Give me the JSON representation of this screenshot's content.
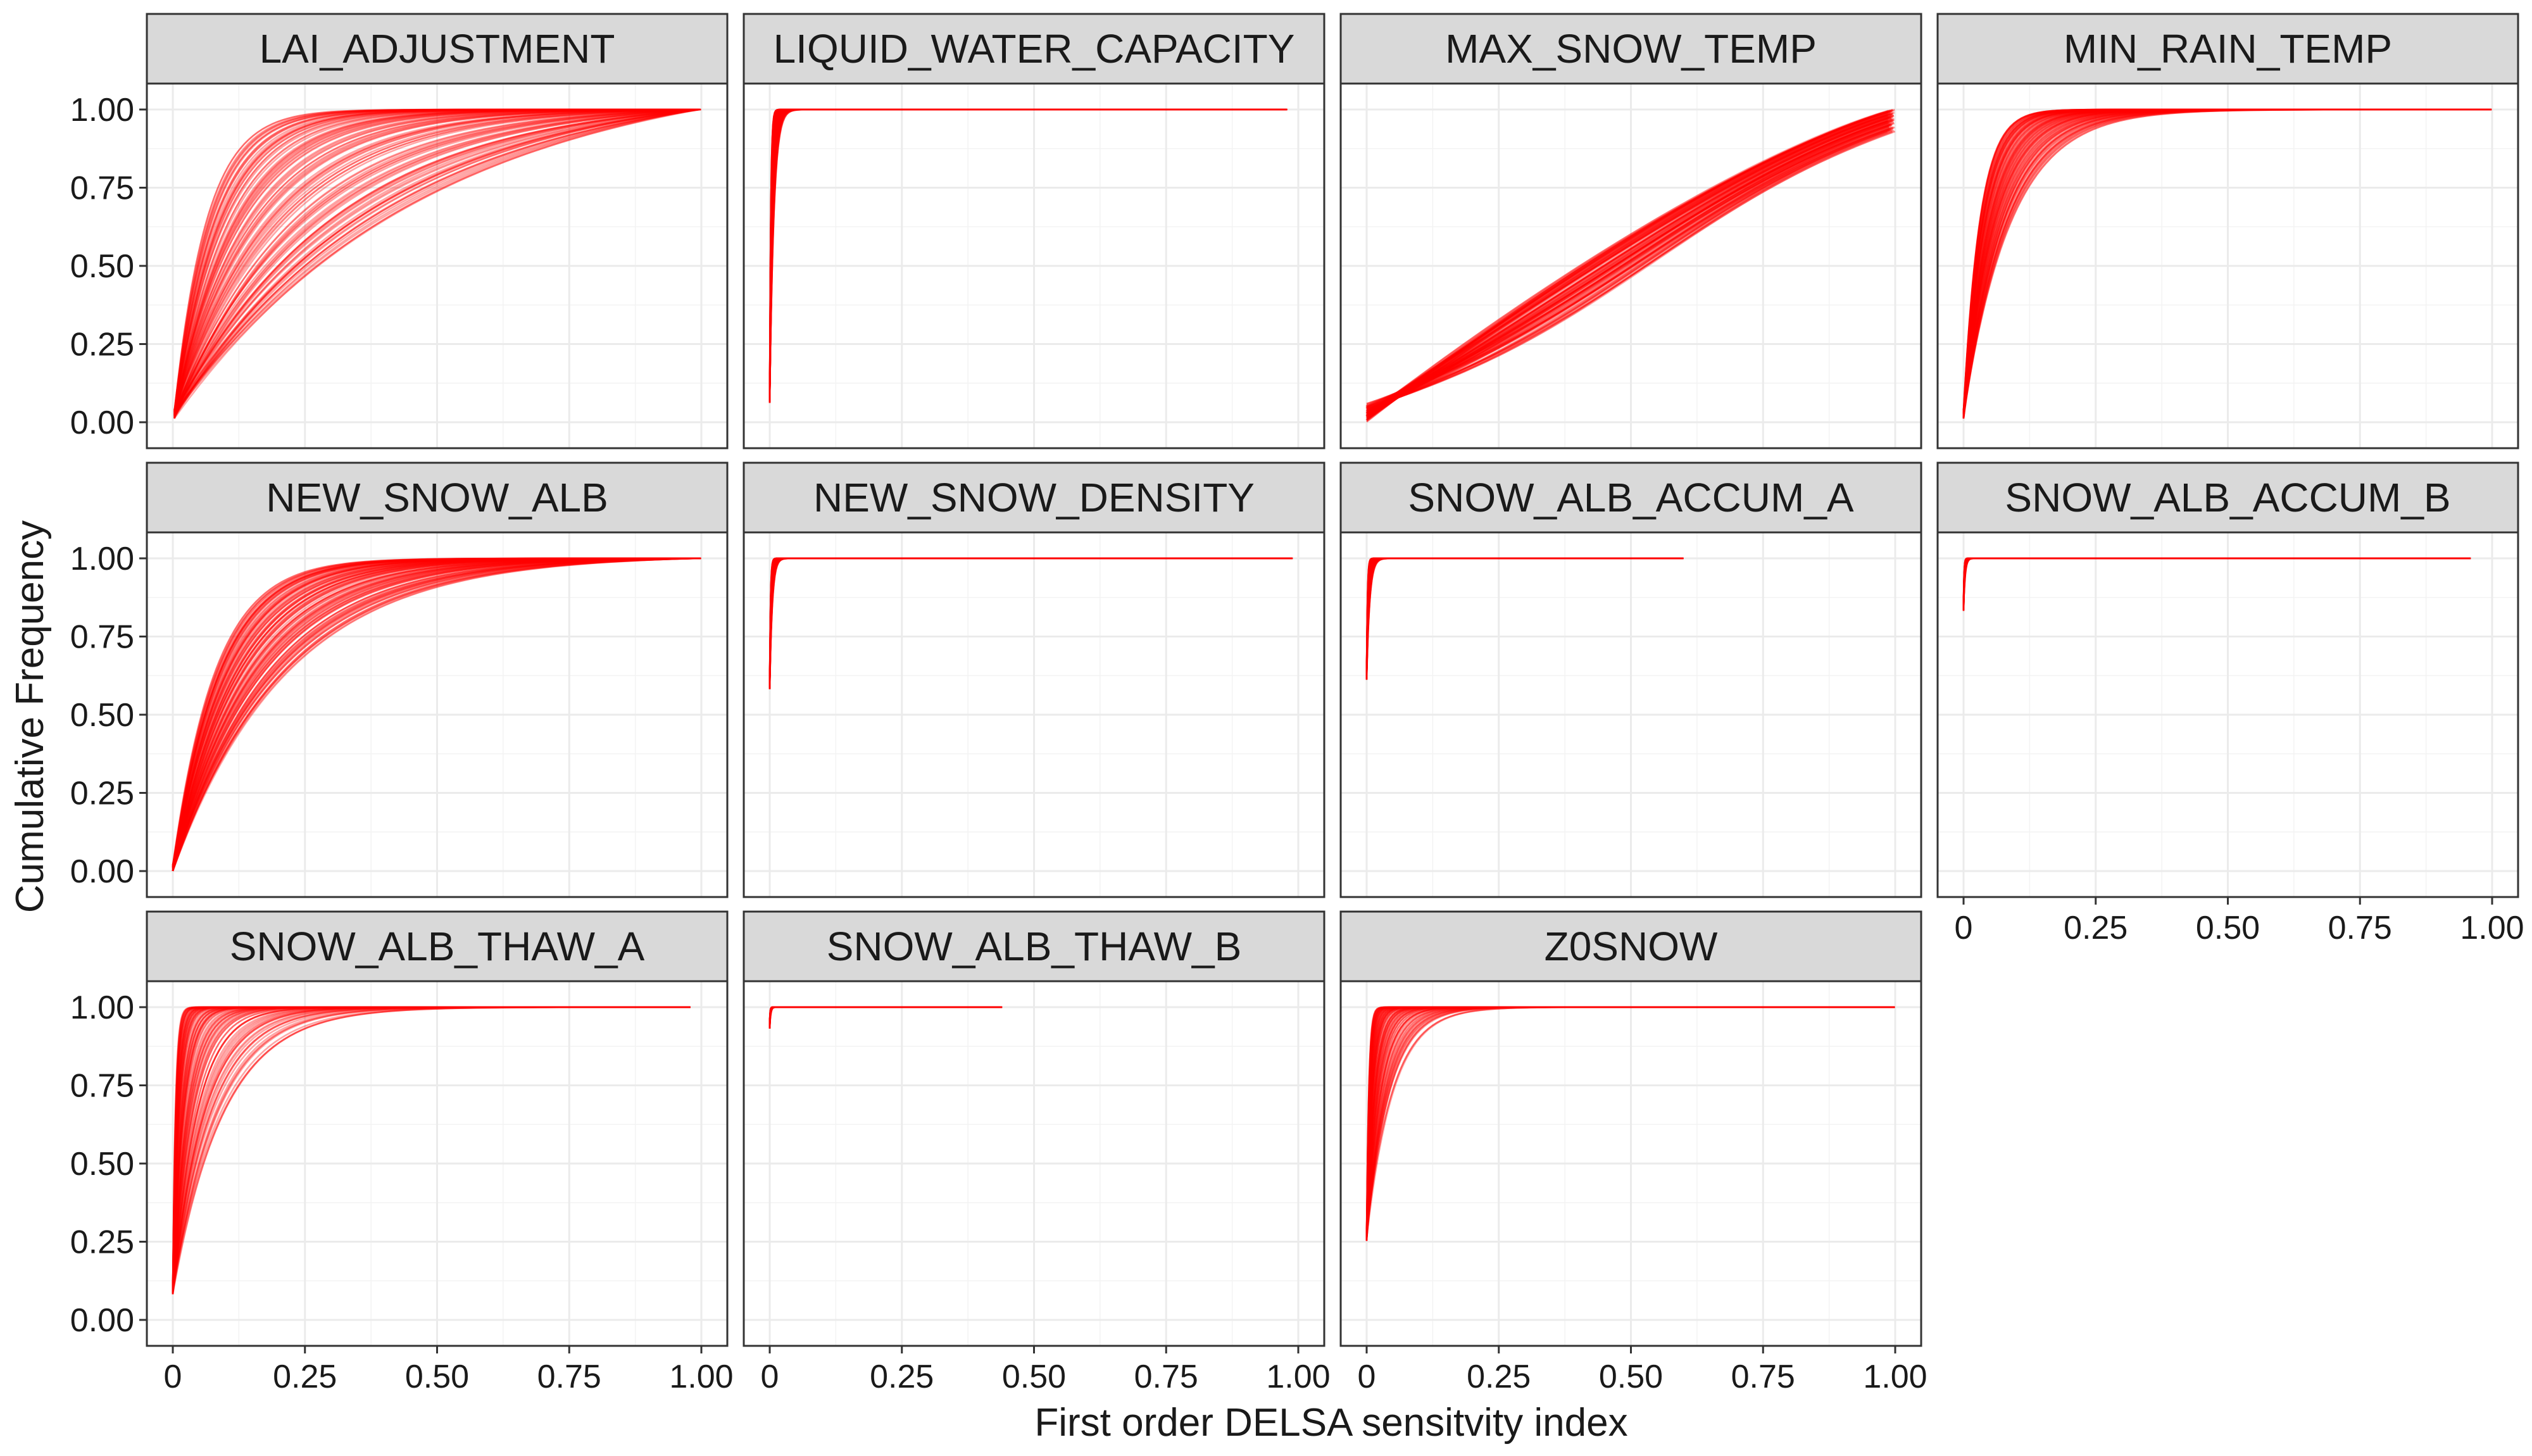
{
  "chart_data": {
    "type": "line",
    "layout": "faceted",
    "xlabel": "First order DELSA sensitvity index",
    "ylabel": "Cumulative Frequency",
    "xlim": [
      0,
      1
    ],
    "ylim": [
      0,
      1
    ],
    "x_ticks": [
      "0",
      "0.25",
      "0.50",
      "0.75",
      "1.00"
    ],
    "y_ticks": [
      "0.00",
      "0.25",
      "0.50",
      "0.75",
      "1.00"
    ],
    "grid": true,
    "line_color": "#ff0000",
    "strip_color": "#d9d9d9",
    "curves_per_panel": 100,
    "panels": [
      {
        "title": "LAI_ADJUSTMENT",
        "x_start": 0.003,
        "y_start": 0.02,
        "max_x": 1.0,
        "k_range": [
          0.06,
          0.5
        ],
        "shape": "concave"
      },
      {
        "title": "LIQUID_WATER_CAPACITY",
        "x_start": 0.0,
        "y_start": 0.07,
        "max_x": 0.98,
        "k_range": [
          0.002,
          0.008
        ],
        "shape": "concave"
      },
      {
        "title": "MAX_SNOW_TEMP",
        "x_start": 0.0,
        "y_start": 0.0,
        "max_x": 1.0,
        "k_range": [
          0.55,
          0.95
        ],
        "shape": "sigmoid"
      },
      {
        "title": "MIN_RAIN_TEMP",
        "x_start": 0.0,
        "y_start": 0.02,
        "max_x": 1.0,
        "k_range": [
          0.03,
          0.09
        ],
        "shape": "concave"
      },
      {
        "title": "NEW_SNOW_ALB",
        "x_start": 0.0,
        "y_start": 0.0,
        "max_x": 1.0,
        "k_range": [
          0.08,
          0.22
        ],
        "shape": "concave"
      },
      {
        "title": "NEW_SNOW_DENSITY",
        "x_start": 0.0,
        "y_start": 0.59,
        "max_x": 0.99,
        "k_range": [
          0.0015,
          0.005
        ],
        "shape": "concave"
      },
      {
        "title": "SNOW_ALB_ACCUM_A",
        "x_start": 0.0,
        "y_start": 0.62,
        "max_x": 0.6,
        "k_range": [
          0.0015,
          0.006
        ],
        "shape": "concave"
      },
      {
        "title": "SNOW_ALB_ACCUM_B",
        "x_start": 0.0,
        "y_start": 0.84,
        "max_x": 0.96,
        "k_range": [
          0.001,
          0.003
        ],
        "shape": "concave"
      },
      {
        "title": "SNOW_ALB_THAW_A",
        "x_start": 0.0,
        "y_start": 0.09,
        "max_x": 0.98,
        "k_range": [
          0.005,
          0.1
        ],
        "shape": "concave"
      },
      {
        "title": "SNOW_ALB_THAW_B",
        "x_start": 0.0,
        "y_start": 0.94,
        "max_x": 0.44,
        "k_range": [
          0.0008,
          0.002
        ],
        "shape": "concave"
      },
      {
        "title": "Z0SNOW",
        "x_start": 0.0,
        "y_start": 0.26,
        "max_x": 1.0,
        "k_range": [
          0.004,
          0.05
        ],
        "shape": "concave"
      }
    ]
  }
}
